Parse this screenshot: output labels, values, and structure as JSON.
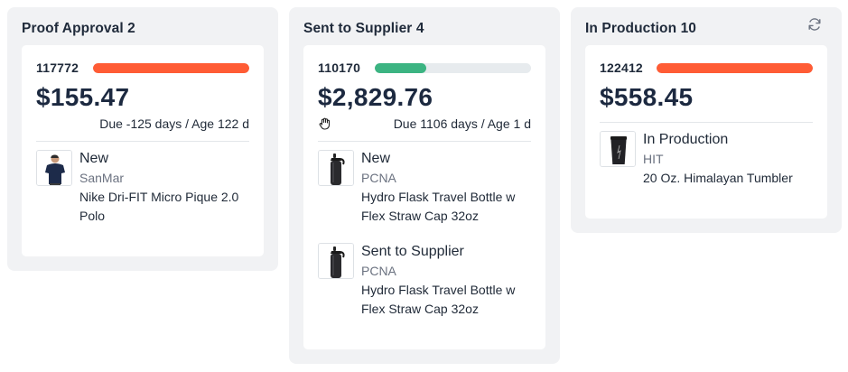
{
  "columns": [
    {
      "title": "Proof Approval 2",
      "card": {
        "order_id": "117772",
        "progress": 1.0,
        "progress_color": "#ff5c35",
        "amount": "$155.47",
        "due": "Due -125 days / Age 122 d",
        "items": [
          {
            "status": "New",
            "vendor": "SanMar",
            "name": "Nike Dri-FIT Micro Pique 2.0 Polo",
            "thumb": "polo-shirt-person"
          }
        ]
      }
    },
    {
      "title": "Sent to Supplier 4",
      "card": {
        "order_id": "110170",
        "progress": 0.33,
        "progress_color": "#3cb482",
        "amount": "$2,829.76",
        "due": "Due 1106 days / Age 1 d",
        "items": [
          {
            "status": "New",
            "vendor": "PCNA",
            "name": "Hydro Flask Travel Bottle w Flex Straw Cap 32oz",
            "thumb": "bottle"
          },
          {
            "status": "Sent to Supplier",
            "vendor": "PCNA",
            "name": "Hydro Flask Travel Bottle w Flex Straw Cap 32oz",
            "thumb": "bottle"
          }
        ]
      }
    },
    {
      "title": "In Production 10",
      "card": {
        "order_id": "122412",
        "progress": 1.0,
        "progress_color": "#ff5c35",
        "amount": "$558.45",
        "due": "",
        "items": [
          {
            "status": "In Production",
            "vendor": "HIT",
            "name": "20 Oz. Himalayan Tumbler",
            "thumb": "tumbler"
          }
        ]
      }
    }
  ],
  "icons": {
    "refresh": "refresh-icon",
    "grab": "hand-grab-icon"
  }
}
